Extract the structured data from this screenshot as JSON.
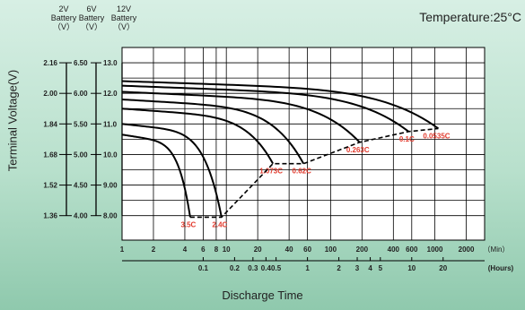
{
  "header": {
    "col_2v": [
      "2V",
      "Battery",
      "（V）"
    ],
    "col_6v": [
      "6V",
      "Battery",
      "（V）"
    ],
    "col_12v": [
      "12V",
      "Battery",
      "（V）"
    ],
    "temperature": "Temperature:25°C"
  },
  "chart_data": {
    "type": "line",
    "xlabel": "Discharge Time",
    "ylabel": "Terminal Voltage(V)",
    "x_scale": "log",
    "xlim_min": [
      1,
      3000
    ],
    "ylim_12v": [
      7.2,
      13.5
    ],
    "grid": true,
    "x_ticks_min": [
      "1",
      "2",
      "4",
      "6",
      "8",
      "10",
      "20",
      "40",
      "60",
      "100",
      "200",
      "400",
      "600",
      "1000",
      "2000",
      "（Min）"
    ],
    "x_ticks_min_values": [
      1,
      2,
      4,
      6,
      8,
      10,
      20,
      40,
      60,
      100,
      200,
      400,
      600,
      1000,
      2000
    ],
    "x_ticks_hours": [
      "0.1",
      "0.2",
      "0.3",
      "0.4",
      "0.5",
      "1",
      "2",
      "3",
      "4",
      "5",
      "10",
      "20",
      "(Hours)"
    ],
    "x_ticks_hours_values_min": [
      6,
      12,
      18,
      24,
      30,
      60,
      120,
      180,
      240,
      300,
      600,
      1200
    ],
    "y_ticks_2v": [
      "2.16",
      "2.00",
      "1.84",
      "1.68",
      "1.52",
      "1.36"
    ],
    "y_ticks_6v": [
      "6.50",
      "6.00",
      "5.50",
      "5.00",
      "4.50",
      "4.00"
    ],
    "y_ticks_12v": [
      "13.0",
      "12.0",
      "11.0",
      "10.0",
      "9.00",
      "8.00"
    ],
    "y_ticks_values_12v": [
      13,
      12,
      11,
      10,
      9,
      8
    ],
    "series": [
      {
        "label": "3.5C",
        "v0": 10.65,
        "end_min": 4.5,
        "end_v": 7.95
      },
      {
        "label": "2.4C",
        "v0": 11.0,
        "end_min": 9,
        "end_v": 7.95
      },
      {
        "label": "1.073C",
        "v0": 11.5,
        "end_min": 28,
        "end_v": 9.7
      },
      {
        "label": "0.62C",
        "v0": 11.8,
        "end_min": 55,
        "end_v": 9.7
      },
      {
        "label": "0.263C",
        "v0": 12.05,
        "end_min": 190,
        "end_v": 10.4
      },
      {
        "label": "0.1C",
        "v0": 12.25,
        "end_min": 560,
        "end_v": 10.75
      },
      {
        "label": "0.0535C",
        "v0": 12.4,
        "end_min": 1080,
        "end_v": 10.85
      }
    ],
    "cutoff_line": [
      {
        "x": 4.5,
        "y": 7.95
      },
      {
        "x": 9,
        "y": 7.95
      },
      {
        "x": 28,
        "y": 9.7
      },
      {
        "x": 55,
        "y": 9.7
      },
      {
        "x": 190,
        "y": 10.4
      },
      {
        "x": 560,
        "y": 10.75
      },
      {
        "x": 1080,
        "y": 10.85
      }
    ],
    "colors": {
      "curve": "#000000",
      "label": "#e23b2e",
      "grid": "#000000",
      "plot_bg": "#ffffff"
    }
  }
}
